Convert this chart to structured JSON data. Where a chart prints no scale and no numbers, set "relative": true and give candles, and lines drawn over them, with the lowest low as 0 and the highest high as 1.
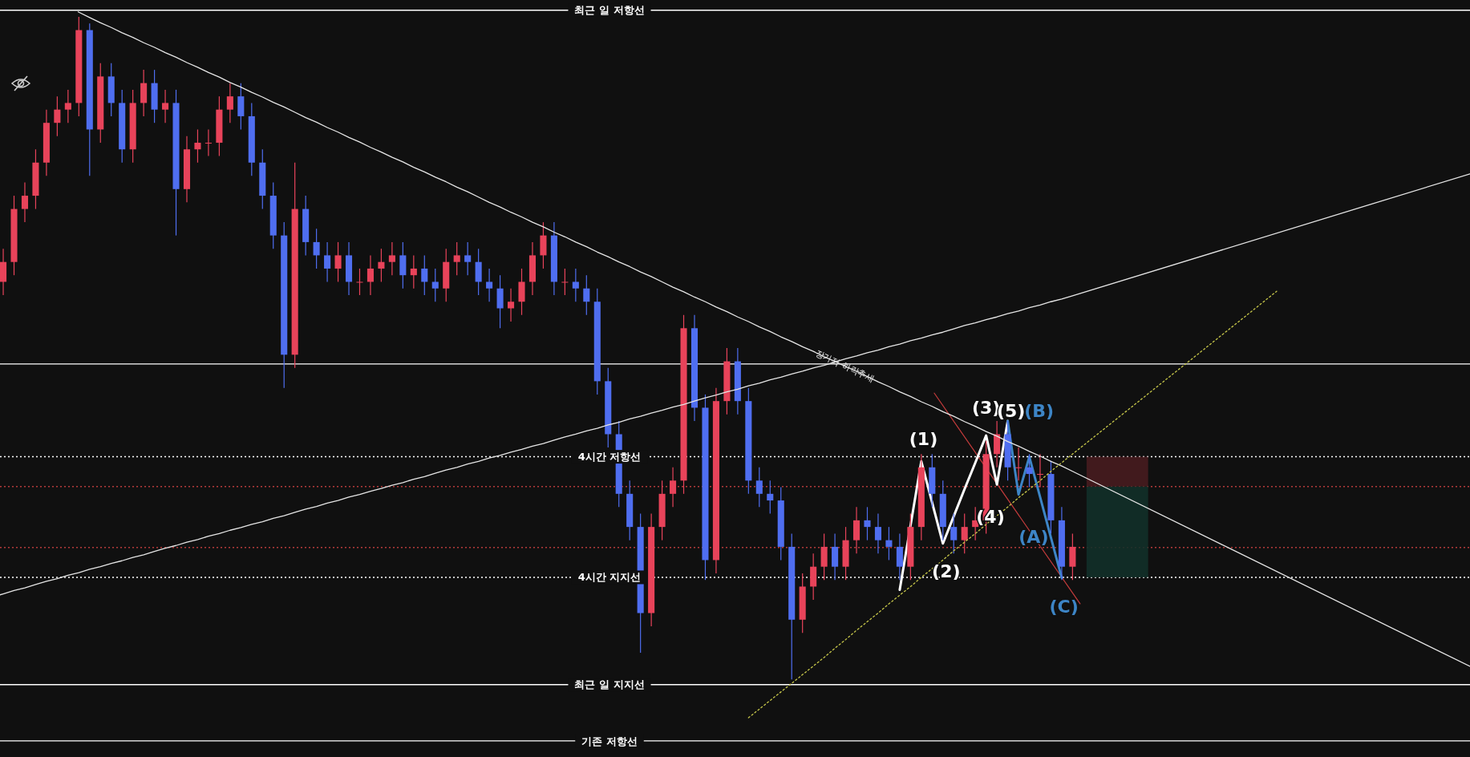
{
  "chart_data": {
    "type": "candlestick",
    "relative": true,
    "tick_labels": false,
    "categories": [
      null,
      null,
      null,
      null,
      null,
      null,
      null,
      null,
      null,
      null,
      null,
      null,
      null,
      null,
      null,
      null,
      null,
      null,
      null,
      null,
      null,
      null,
      null,
      null,
      null,
      null,
      null,
      null,
      null,
      null,
      null,
      null,
      null,
      null,
      null,
      null,
      null,
      null,
      null,
      null,
      null,
      null,
      null,
      null,
      null,
      null,
      null,
      null,
      null,
      null,
      null,
      null,
      null,
      null,
      null,
      null,
      null,
      null,
      null,
      null,
      null,
      null,
      null,
      null,
      null,
      null,
      null,
      null,
      null,
      null,
      null,
      null,
      null,
      null,
      null,
      null,
      null,
      null,
      null,
      null,
      null,
      null,
      null,
      null,
      null,
      null,
      null,
      null,
      null,
      null,
      null,
      null,
      null,
      null,
      null,
      null,
      null,
      null,
      null,
      null
    ],
    "ohlc": [
      [
        0.6,
        0.65,
        0.58,
        0.63
      ],
      [
        0.63,
        0.73,
        0.61,
        0.71
      ],
      [
        0.71,
        0.75,
        0.69,
        0.73
      ],
      [
        0.73,
        0.8,
        0.71,
        0.78
      ],
      [
        0.78,
        0.86,
        0.76,
        0.84
      ],
      [
        0.84,
        0.88,
        0.82,
        0.86
      ],
      [
        0.86,
        0.89,
        0.84,
        0.87
      ],
      [
        0.87,
        1.0,
        0.85,
        0.98
      ],
      [
        0.98,
        0.99,
        0.76,
        0.83
      ],
      [
        0.83,
        0.93,
        0.81,
        0.91
      ],
      [
        0.91,
        0.93,
        0.85,
        0.87
      ],
      [
        0.87,
        0.89,
        0.78,
        0.8
      ],
      [
        0.8,
        0.89,
        0.78,
        0.87
      ],
      [
        0.87,
        0.92,
        0.85,
        0.9
      ],
      [
        0.9,
        0.92,
        0.84,
        0.86
      ],
      [
        0.86,
        0.89,
        0.84,
        0.87
      ],
      [
        0.87,
        0.89,
        0.67,
        0.74
      ],
      [
        0.74,
        0.82,
        0.72,
        0.8
      ],
      [
        0.8,
        0.83,
        0.78,
        0.81
      ],
      [
        0.81,
        0.83,
        0.79,
        0.81
      ],
      [
        0.81,
        0.88,
        0.79,
        0.86
      ],
      [
        0.86,
        0.9,
        0.84,
        0.88
      ],
      [
        0.88,
        0.9,
        0.83,
        0.85
      ],
      [
        0.85,
        0.87,
        0.76,
        0.78
      ],
      [
        0.78,
        0.8,
        0.71,
        0.73
      ],
      [
        0.73,
        0.75,
        0.65,
        0.67
      ],
      [
        0.67,
        0.69,
        0.44,
        0.49
      ],
      [
        0.49,
        0.78,
        0.47,
        0.71
      ],
      [
        0.71,
        0.73,
        0.64,
        0.66
      ],
      [
        0.66,
        0.68,
        0.62,
        0.64
      ],
      [
        0.64,
        0.66,
        0.6,
        0.62
      ],
      [
        0.62,
        0.66,
        0.6,
        0.64
      ],
      [
        0.64,
        0.66,
        0.58,
        0.6
      ],
      [
        0.6,
        0.62,
        0.58,
        0.6
      ],
      [
        0.6,
        0.64,
        0.58,
        0.62
      ],
      [
        0.62,
        0.65,
        0.6,
        0.63
      ],
      [
        0.63,
        0.66,
        0.61,
        0.64
      ],
      [
        0.64,
        0.66,
        0.59,
        0.61
      ],
      [
        0.61,
        0.64,
        0.59,
        0.62
      ],
      [
        0.62,
        0.64,
        0.58,
        0.6
      ],
      [
        0.6,
        0.62,
        0.57,
        0.59
      ],
      [
        0.59,
        0.65,
        0.57,
        0.63
      ],
      [
        0.63,
        0.66,
        0.61,
        0.64
      ],
      [
        0.64,
        0.66,
        0.61,
        0.63
      ],
      [
        0.63,
        0.65,
        0.58,
        0.6
      ],
      [
        0.6,
        0.62,
        0.57,
        0.59
      ],
      [
        0.59,
        0.61,
        0.53,
        0.56
      ],
      [
        0.56,
        0.59,
        0.54,
        0.57
      ],
      [
        0.57,
        0.62,
        0.55,
        0.6
      ],
      [
        0.6,
        0.66,
        0.58,
        0.64
      ],
      [
        0.64,
        0.69,
        0.62,
        0.67
      ],
      [
        0.67,
        0.69,
        0.58,
        0.6
      ],
      [
        0.6,
        0.62,
        0.58,
        0.6
      ],
      [
        0.6,
        0.62,
        0.57,
        0.59
      ],
      [
        0.59,
        0.61,
        0.55,
        0.57
      ],
      [
        0.57,
        0.59,
        0.43,
        0.45
      ],
      [
        0.45,
        0.47,
        0.35,
        0.37
      ],
      [
        0.37,
        0.39,
        0.26,
        0.28
      ],
      [
        0.28,
        0.3,
        0.21,
        0.23
      ],
      [
        0.23,
        0.25,
        0.04,
        0.1
      ],
      [
        0.1,
        0.25,
        0.08,
        0.23
      ],
      [
        0.23,
        0.3,
        0.21,
        0.28
      ],
      [
        0.28,
        0.32,
        0.26,
        0.3
      ],
      [
        0.3,
        0.55,
        0.28,
        0.53
      ],
      [
        0.53,
        0.55,
        0.39,
        0.41
      ],
      [
        0.41,
        0.43,
        0.15,
        0.18
      ],
      [
        0.18,
        0.44,
        0.16,
        0.42
      ],
      [
        0.42,
        0.5,
        0.4,
        0.48
      ],
      [
        0.48,
        0.5,
        0.4,
        0.42
      ],
      [
        0.42,
        0.44,
        0.28,
        0.3
      ],
      [
        0.3,
        0.32,
        0.26,
        0.28
      ],
      [
        0.28,
        0.3,
        0.25,
        0.27
      ],
      [
        0.27,
        0.29,
        0.18,
        0.2
      ],
      [
        0.2,
        0.22,
        0.0,
        0.09
      ],
      [
        0.09,
        0.16,
        0.07,
        0.14
      ],
      [
        0.14,
        0.19,
        0.12,
        0.17
      ],
      [
        0.17,
        0.22,
        0.15,
        0.2
      ],
      [
        0.2,
        0.22,
        0.15,
        0.17
      ],
      [
        0.17,
        0.23,
        0.15,
        0.21
      ],
      [
        0.21,
        0.26,
        0.19,
        0.24
      ],
      [
        0.24,
        0.26,
        0.21,
        0.23
      ],
      [
        0.23,
        0.25,
        0.19,
        0.21
      ],
      [
        0.21,
        0.23,
        0.18,
        0.2
      ],
      [
        0.2,
        0.22,
        0.15,
        0.17
      ],
      [
        0.17,
        0.25,
        0.15,
        0.23
      ],
      [
        0.23,
        0.34,
        0.21,
        0.32
      ],
      [
        0.32,
        0.34,
        0.26,
        0.28
      ],
      [
        0.28,
        0.3,
        0.21,
        0.23
      ],
      [
        0.23,
        0.25,
        0.19,
        0.21
      ],
      [
        0.21,
        0.25,
        0.19,
        0.23
      ],
      [
        0.23,
        0.26,
        0.21,
        0.24
      ],
      [
        0.24,
        0.36,
        0.22,
        0.34
      ],
      [
        0.34,
        0.39,
        0.32,
        0.37
      ],
      [
        0.37,
        0.39,
        0.3,
        0.32
      ],
      [
        0.32,
        0.35,
        0.3,
        0.32
      ],
      [
        0.32,
        0.34,
        0.29,
        0.31
      ],
      [
        0.31,
        0.34,
        0.29,
        0.31
      ],
      [
        0.31,
        0.33,
        0.22,
        0.24
      ],
      [
        0.24,
        0.26,
        0.15,
        0.17
      ],
      [
        0.17,
        0.22,
        0.15,
        0.2
      ]
    ],
    "ref_lines": [
      {
        "axis": "y",
        "value": 1.01,
        "label": "최근 일 저항선",
        "color": "#ffffff",
        "line_style": "solid"
      },
      {
        "axis": "y",
        "value": 0.476,
        "color": "#ffffff",
        "line_style": "solid"
      },
      {
        "axis": "y",
        "value": 0.336,
        "label": "4시간 저항선",
        "color": "#ffffff",
        "line_style": "dotted"
      },
      {
        "axis": "y",
        "value": 0.291,
        "color": "#b33a3a",
        "line_style": "dotted"
      },
      {
        "axis": "y",
        "value": 0.199,
        "color": "#b33a3a",
        "line_style": "dotted"
      },
      {
        "axis": "y",
        "value": 0.154,
        "label": "4시간 지지선",
        "color": "#ffffff",
        "line_style": "dotted"
      },
      {
        "axis": "y",
        "value": -0.008,
        "label": "최근 일 지지선",
        "color": "#ffffff",
        "line_style": "solid"
      },
      {
        "axis": "y",
        "value": -0.093,
        "label": "기존 저항선",
        "color": "#ffffff",
        "line_style": "solid"
      }
    ],
    "series": [
      {
        "type": "line",
        "name": "장기적 하락추세",
        "color": "#e6e6e6",
        "line_style": "solid",
        "values": [
          null,
          null,
          null,
          null,
          null,
          null,
          null,
          null,
          0.999,
          0.991,
          0.984,
          0.976,
          0.969,
          0.961,
          0.954,
          0.946,
          0.939,
          0.931,
          0.924,
          0.916,
          0.909,
          0.901,
          0.894,
          0.886,
          0.879,
          0.871,
          0.864,
          0.856,
          0.848,
          0.841,
          0.833,
          0.826,
          0.818,
          0.811,
          0.803,
          0.796,
          0.788,
          0.781,
          0.773,
          0.766,
          0.758,
          0.751,
          0.743,
          0.736,
          0.728,
          0.72,
          0.713,
          0.705,
          0.698,
          0.69,
          0.683,
          0.675,
          0.668,
          0.66,
          0.653,
          0.645,
          0.638,
          0.63,
          0.623,
          0.615,
          0.608,
          0.6,
          0.592,
          0.585,
          0.577,
          0.57,
          0.562,
          0.555,
          0.547,
          0.54,
          0.532,
          0.525,
          0.517,
          0.51,
          0.502,
          0.495,
          0.487,
          0.48,
          0.472,
          0.465,
          0.457,
          0.449,
          0.442,
          0.434,
          0.427,
          0.419,
          0.412,
          0.404,
          0.397,
          0.389,
          0.382,
          0.374,
          0.367,
          0.359,
          0.352,
          0.344,
          0.337,
          0.329,
          0.322,
          0.314
        ]
      },
      {
        "type": "line",
        "color": "#e6e6e6",
        "line_style": "solid",
        "values": [
          0.129,
          0.134,
          0.138,
          0.143,
          0.148,
          0.152,
          0.157,
          0.161,
          0.166,
          0.17,
          0.175,
          0.179,
          0.184,
          0.188,
          0.193,
          0.198,
          0.202,
          0.207,
          0.211,
          0.216,
          0.22,
          0.225,
          0.229,
          0.234,
          0.238,
          0.243,
          0.247,
          0.252,
          0.257,
          0.261,
          0.266,
          0.27,
          0.275,
          0.279,
          0.284,
          0.288,
          0.293,
          0.297,
          0.302,
          0.306,
          0.311,
          0.316,
          0.32,
          0.325,
          0.329,
          0.334,
          0.338,
          0.343,
          0.347,
          0.352,
          0.356,
          0.361,
          0.366,
          0.37,
          0.375,
          0.379,
          0.384,
          0.388,
          0.393,
          0.397,
          0.402,
          0.406,
          0.411,
          0.415,
          0.42,
          0.425,
          0.429,
          0.434,
          0.438,
          0.443,
          0.447,
          0.452,
          0.456,
          0.461,
          0.465,
          0.47,
          0.474,
          0.479,
          0.484,
          0.488,
          0.493,
          0.497,
          0.502,
          0.506,
          0.511,
          0.515,
          0.52,
          0.524,
          0.529,
          0.534,
          0.538,
          0.543,
          0.547,
          0.552,
          0.556,
          0.561,
          0.565,
          0.57,
          0.574,
          0.579
        ]
      },
      {
        "type": "line",
        "color": "#c8c84a",
        "line_style": "dotted",
        "values": [
          null,
          null,
          null,
          null,
          null,
          null,
          null,
          null,
          null,
          null,
          null,
          null,
          null,
          null,
          null,
          null,
          null,
          null,
          null,
          null,
          null,
          null,
          null,
          null,
          null,
          null,
          null,
          null,
          null,
          null,
          null,
          null,
          null,
          null,
          null,
          null,
          null,
          null,
          null,
          null,
          null,
          null,
          null,
          null,
          null,
          null,
          null,
          null,
          null,
          null,
          null,
          null,
          null,
          null,
          null,
          null,
          null,
          null,
          null,
          null,
          null,
          null,
          null,
          null,
          null,
          null,
          null,
          null,
          null,
          null,
          null,
          null,
          null,
          null,
          0.007,
          0.02,
          0.033,
          0.047,
          0.06,
          0.074,
          0.087,
          0.1,
          0.114,
          0.127,
          0.14,
          0.154,
          0.167,
          0.18,
          0.194,
          0.207,
          0.22,
          0.234,
          0.247,
          0.26,
          0.274,
          0.287,
          0.3,
          0.314,
          0.327,
          0.34
        ]
      },
      {
        "type": "line",
        "color": "#ffffff",
        "line_style": "solid",
        "values": [
          null,
          null,
          null,
          null,
          null,
          null,
          null,
          null,
          null,
          null,
          null,
          null,
          null,
          null,
          null,
          null,
          null,
          null,
          null,
          null,
          null,
          null,
          null,
          null,
          null,
          null,
          null,
          null,
          null,
          null,
          null,
          null,
          null,
          null,
          null,
          null,
          null,
          null,
          null,
          null,
          null,
          null,
          null,
          null,
          null,
          null,
          null,
          null,
          null,
          null,
          null,
          null,
          null,
          null,
          null,
          null,
          null,
          null,
          null,
          null,
          null,
          null,
          null,
          null,
          null,
          null,
          null,
          null,
          null,
          null,
          null,
          null,
          null,
          null,
          null,
          null,
          null,
          null,
          null,
          null,
          null,
          null,
          null,
          0.135,
          0.232,
          0.329,
          0.267,
          0.205,
          0.246,
          0.287,
          0.327,
          0.368,
          0.294,
          0.39,
          null,
          null,
          null,
          null,
          null,
          null
        ]
      },
      {
        "type": "line",
        "color": "#3d85c6",
        "line_style": "solid",
        "values": [
          null,
          null,
          null,
          null,
          null,
          null,
          null,
          null,
          null,
          null,
          null,
          null,
          null,
          null,
          null,
          null,
          null,
          null,
          null,
          null,
          null,
          null,
          null,
          null,
          null,
          null,
          null,
          null,
          null,
          null,
          null,
          null,
          null,
          null,
          null,
          null,
          null,
          null,
          null,
          null,
          null,
          null,
          null,
          null,
          null,
          null,
          null,
          null,
          null,
          null,
          null,
          null,
          null,
          null,
          null,
          null,
          null,
          null,
          null,
          null,
          null,
          null,
          null,
          null,
          null,
          null,
          null,
          null,
          null,
          null,
          null,
          null,
          null,
          null,
          null,
          null,
          null,
          null,
          null,
          null,
          null,
          null,
          null,
          null,
          null,
          null,
          null,
          null,
          null,
          null,
          null,
          null,
          null,
          0.39,
          0.279,
          0.336,
          0.275,
          0.214,
          0.153,
          null
        ]
      }
    ],
    "annotations": [
      "(1)",
      "(2)",
      "(3)",
      "(4)",
      "(5)",
      "(A)",
      "(B)",
      "(C)"
    ]
  }
}
